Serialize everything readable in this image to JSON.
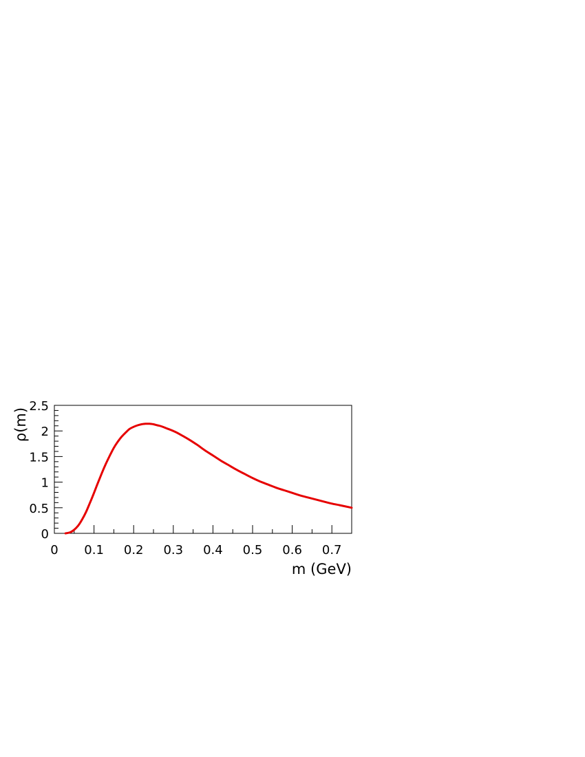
{
  "chart_data": {
    "type": "line",
    "title": "",
    "xlabel": "m (GeV)",
    "ylabel": "ρ(m)",
    "xlim": [
      0,
      0.75
    ],
    "ylim": [
      0,
      2.5
    ],
    "x_ticks": [
      "0",
      "0.1",
      "0.2",
      "0.3",
      "0.4",
      "0.5",
      "0.6",
      "0.7"
    ],
    "y_ticks": [
      "0",
      "0.5",
      "1",
      "1.5",
      "2",
      "2.5"
    ],
    "grid": false,
    "series": [
      {
        "color": "#e60000",
        "x": [
          0.028,
          0.04,
          0.05,
          0.06,
          0.07,
          0.08,
          0.09,
          0.1,
          0.11,
          0.12,
          0.13,
          0.14,
          0.15,
          0.16,
          0.17,
          0.18,
          0.19,
          0.2,
          0.21,
          0.22,
          0.23,
          0.24,
          0.25,
          0.26,
          0.27,
          0.28,
          0.3,
          0.32,
          0.34,
          0.36,
          0.38,
          0.4,
          0.42,
          0.44,
          0.46,
          0.48,
          0.5,
          0.52,
          0.54,
          0.56,
          0.58,
          0.6,
          0.62,
          0.64,
          0.66,
          0.68,
          0.7,
          0.72,
          0.75
        ],
        "y": [
          0.0,
          0.02,
          0.07,
          0.15,
          0.27,
          0.42,
          0.6,
          0.79,
          0.99,
          1.18,
          1.36,
          1.52,
          1.67,
          1.79,
          1.89,
          1.97,
          2.04,
          2.08,
          2.11,
          2.13,
          2.14,
          2.14,
          2.13,
          2.11,
          2.09,
          2.06,
          2.0,
          1.92,
          1.83,
          1.73,
          1.62,
          1.52,
          1.42,
          1.33,
          1.24,
          1.16,
          1.08,
          1.01,
          0.95,
          0.89,
          0.84,
          0.79,
          0.74,
          0.7,
          0.66,
          0.62,
          0.58,
          0.55,
          0.5
        ]
      }
    ]
  }
}
